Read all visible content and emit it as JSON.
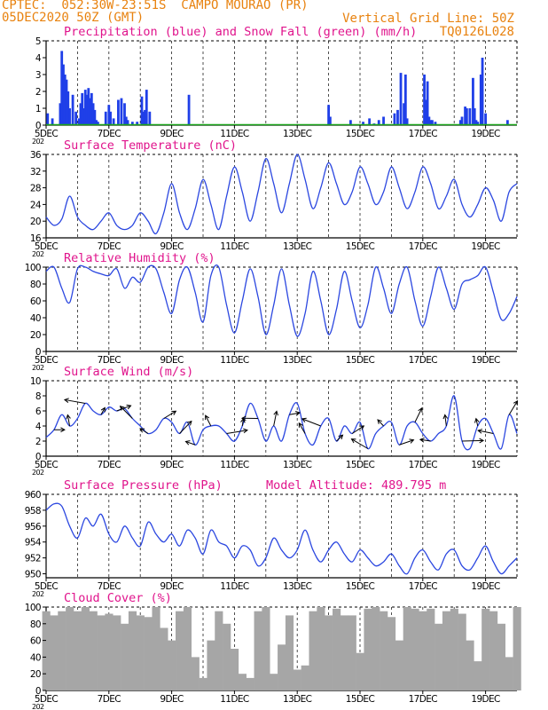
{
  "header": {
    "line1": "CPTEC:  052:30W-23:51S  CAMPO MOURAO (PR)",
    "line2_left": "05DEC2020 50Z (GMT)",
    "line2_right": "Vertical Grid Line: 50Z",
    "line3_right": "TQ0126L028"
  },
  "x_ticks": [
    "5DEC",
    "7DEC",
    "9DEC",
    "11DEC",
    "13DEC",
    "15DEC",
    "17DEC",
    "19DEC"
  ],
  "year_stub": "202",
  "colors": {
    "title": "#e0148c",
    "header": "#e8820f",
    "precip": "#1f3fe8",
    "snow": "#1aa51a",
    "line": "#2b47e0",
    "cloud": "#a6a6a6"
  },
  "chart_data": [
    {
      "type": "bar",
      "title": "Precipitation (blue) and Snow Fall (green) (mm/h)",
      "x_range": [
        5,
        20
      ],
      "ylim": [
        0,
        5
      ],
      "y_ticks": [
        0,
        1,
        2,
        3,
        4,
        5
      ],
      "series": [
        {
          "name": "Precipitation",
          "x": [
            5.05,
            5.2,
            5.45,
            5.5,
            5.55,
            5.6,
            5.65,
            5.7,
            5.75,
            5.85,
            5.95,
            6.05,
            6.1,
            6.15,
            6.2,
            6.25,
            6.3,
            6.35,
            6.4,
            6.45,
            6.5,
            6.55,
            6.6,
            6.65,
            6.9,
            7.0,
            7.05,
            7.15,
            7.3,
            7.4,
            7.5,
            7.55,
            7.6,
            7.75,
            7.9,
            8.05,
            8.1,
            8.15,
            8.2,
            8.3,
            9.55,
            14.0,
            14.05,
            14.7,
            15.1,
            15.3,
            15.45,
            15.6,
            15.75,
            16.1,
            16.2,
            16.3,
            16.4,
            16.45,
            16.5,
            17.05,
            17.1,
            17.15,
            17.2,
            17.25,
            17.3,
            17.4,
            18.2,
            18.25,
            18.35,
            18.4,
            18.5,
            18.6,
            18.65,
            18.7,
            18.75,
            18.85,
            18.9,
            19.0,
            19.7
          ],
          "values": [
            0.7,
            0.4,
            1.3,
            4.4,
            3.6,
            3.0,
            2.7,
            2.0,
            1.0,
            1.8,
            0.8,
            0.4,
            1.3,
            1.9,
            1.0,
            2.1,
            1.8,
            2.2,
            1.6,
            1.9,
            1.3,
            0.9,
            0.3,
            0.2,
            0.8,
            1.2,
            0.8,
            0.4,
            1.5,
            1.6,
            1.3,
            0.5,
            0.3,
            0.2,
            0.2,
            1.7,
            0.8,
            0.9,
            2.1,
            0.8,
            1.8,
            1.2,
            0.5,
            0.3,
            0.2,
            0.4,
            0.1,
            0.3,
            0.5,
            0.7,
            0.9,
            3.1,
            1.3,
            3.0,
            0.4,
            3.0,
            1.5,
            2.6,
            0.5,
            0.3,
            0.3,
            0.2,
            0.3,
            0.5,
            1.1,
            1.0,
            1.0,
            2.8,
            1.0,
            0.3,
            0.2,
            3.0,
            4.0,
            0.7,
            0.3
          ]
        },
        {
          "name": "Snow Fall",
          "x": [
            5,
            20
          ],
          "values": [
            0,
            0
          ]
        }
      ]
    },
    {
      "type": "line",
      "title": "Surface Temperature (nC)",
      "x_range": [
        5,
        20
      ],
      "ylim": [
        16,
        36
      ],
      "y_ticks": [
        16,
        20,
        24,
        28,
        32,
        36
      ],
      "x": [
        5.0,
        5.25,
        5.5,
        5.75,
        6.0,
        6.25,
        6.5,
        6.75,
        7.0,
        7.25,
        7.5,
        7.75,
        8.0,
        8.25,
        8.5,
        8.75,
        9.0,
        9.25,
        9.5,
        9.75,
        10.0,
        10.25,
        10.5,
        10.75,
        11.0,
        11.25,
        11.5,
        11.75,
        12.0,
        12.25,
        12.5,
        12.75,
        13.0,
        13.25,
        13.5,
        13.75,
        14.0,
        14.25,
        14.5,
        14.75,
        15.0,
        15.25,
        15.5,
        15.75,
        16.0,
        16.25,
        16.5,
        16.75,
        17.0,
        17.25,
        17.5,
        17.75,
        18.0,
        18.25,
        18.5,
        18.75,
        19.0,
        19.25,
        19.5,
        19.75,
        20.0
      ],
      "series": [
        {
          "values": [
            21,
            19,
            20.5,
            26,
            21,
            19,
            18,
            20,
            22,
            19,
            18,
            19,
            22,
            20,
            17,
            22,
            29,
            22,
            18,
            23,
            30,
            24,
            18,
            26,
            33,
            27,
            20,
            27,
            35,
            29,
            22,
            29,
            36,
            30,
            23,
            28,
            34,
            29,
            24,
            27,
            33,
            29,
            24,
            27,
            33,
            28,
            23,
            27,
            33,
            29,
            23,
            26,
            30,
            24,
            21,
            24,
            28,
            25,
            20,
            27,
            29
          ]
        }
      ]
    },
    {
      "type": "line",
      "title": "Relative Humidity (%)",
      "x_range": [
        5,
        20
      ],
      "ylim": [
        0,
        100
      ],
      "y_ticks": [
        0,
        20,
        40,
        60,
        80,
        100
      ],
      "x": [
        5.0,
        5.25,
        5.5,
        5.75,
        6.0,
        6.25,
        6.5,
        6.75,
        7.0,
        7.25,
        7.5,
        7.75,
        8.0,
        8.25,
        8.5,
        8.75,
        9.0,
        9.25,
        9.5,
        9.75,
        10.0,
        10.25,
        10.5,
        10.75,
        11.0,
        11.25,
        11.5,
        11.75,
        12.0,
        12.25,
        12.5,
        12.75,
        13.0,
        13.25,
        13.5,
        13.75,
        14.0,
        14.25,
        14.5,
        14.75,
        15.0,
        15.25,
        15.5,
        15.75,
        16.0,
        16.25,
        16.5,
        16.75,
        17.0,
        17.25,
        17.5,
        17.75,
        18.0,
        18.25,
        18.5,
        18.75,
        19.0,
        19.25,
        19.5,
        19.75,
        20.0
      ],
      "series": [
        {
          "values": [
            95,
            100,
            75,
            58,
            98,
            100,
            95,
            92,
            90,
            98,
            75,
            88,
            82,
            100,
            98,
            70,
            45,
            85,
            100,
            70,
            35,
            90,
            100,
            55,
            22,
            60,
            98,
            65,
            20,
            55,
            98,
            55,
            18,
            45,
            95,
            60,
            20,
            50,
            95,
            60,
            28,
            55,
            100,
            75,
            45,
            80,
            100,
            60,
            30,
            65,
            100,
            75,
            50,
            80,
            85,
            90,
            100,
            70,
            38,
            45,
            65
          ]
        }
      ]
    },
    {
      "type": "line",
      "title": "Surface Wind (m/s)",
      "x_range": [
        5,
        20
      ],
      "ylim": [
        0,
        10
      ],
      "y_ticks": [
        0,
        2,
        4,
        6,
        8,
        10
      ],
      "x": [
        5.0,
        5.25,
        5.5,
        5.75,
        6.0,
        6.25,
        6.5,
        6.75,
        7.0,
        7.25,
        7.5,
        7.75,
        8.0,
        8.25,
        8.5,
        8.75,
        9.0,
        9.25,
        9.5,
        9.75,
        10.0,
        10.25,
        10.5,
        10.75,
        11.0,
        11.25,
        11.5,
        11.75,
        12.0,
        12.25,
        12.5,
        12.75,
        13.0,
        13.25,
        13.5,
        13.75,
        14.0,
        14.25,
        14.5,
        14.75,
        15.0,
        15.25,
        15.5,
        15.75,
        16.0,
        16.25,
        16.5,
        16.75,
        17.0,
        17.25,
        17.5,
        17.75,
        18.0,
        18.25,
        18.5,
        18.75,
        19.0,
        19.25,
        19.5,
        19.75,
        20.0
      ],
      "series": [
        {
          "values": [
            2.5,
            3.5,
            5.5,
            4.0,
            5.0,
            7.0,
            6.0,
            5.5,
            6.5,
            6.0,
            6.3,
            5.0,
            4.0,
            3.0,
            3.5,
            5.0,
            4.5,
            3.0,
            4.5,
            1.5,
            3.5,
            4.0,
            4.0,
            3.0,
            2.0,
            4.0,
            7.0,
            5.0,
            2.0,
            4.0,
            2.0,
            5.5,
            7.0,
            3.0,
            1.5,
            4.0,
            5.0,
            2.0,
            4.0,
            3.0,
            4.5,
            1.0,
            3.0,
            4.0,
            4.5,
            1.5,
            4.0,
            4.5,
            3.0,
            2.0,
            3.0,
            4.0,
            8.0,
            2.0,
            1.0,
            4.0,
            5.0,
            3.0,
            1.0,
            5.5,
            3.0
          ]
        }
      ],
      "wind_arrow_count": 30
    },
    {
      "type": "line",
      "title": "Surface Pressure (hPa)",
      "annotation": "Model Altitude: 489.795 m",
      "x_range": [
        5,
        20
      ],
      "ylim": [
        949.5,
        960
      ],
      "y_ticks": [
        950,
        952,
        954,
        956,
        958,
        960
      ],
      "x": [
        5.0,
        5.25,
        5.5,
        5.75,
        6.0,
        6.25,
        6.5,
        6.75,
        7.0,
        7.25,
        7.5,
        7.75,
        8.0,
        8.25,
        8.5,
        8.75,
        9.0,
        9.25,
        9.5,
        9.75,
        10.0,
        10.25,
        10.5,
        10.75,
        11.0,
        11.25,
        11.5,
        11.75,
        12.0,
        12.25,
        12.5,
        12.75,
        13.0,
        13.25,
        13.5,
        13.75,
        14.0,
        14.25,
        14.5,
        14.75,
        15.0,
        15.25,
        15.5,
        15.75,
        16.0,
        16.25,
        16.5,
        16.75,
        17.0,
        17.25,
        17.5,
        17.75,
        18.0,
        18.25,
        18.5,
        18.75,
        19.0,
        19.25,
        19.5,
        19.75,
        20.0
      ],
      "series": [
        {
          "values": [
            958,
            958.8,
            958.5,
            956,
            954.5,
            957,
            956,
            957.5,
            955,
            954,
            956,
            954.5,
            953.5,
            956.5,
            955,
            954,
            955,
            953.5,
            955.5,
            954.5,
            952.5,
            955.5,
            954,
            953.5,
            952,
            953.5,
            953,
            951,
            952,
            954.5,
            953,
            952,
            953,
            955.5,
            953,
            951.5,
            953,
            954,
            952.5,
            951.5,
            953,
            952,
            951,
            951.5,
            952.5,
            951,
            950,
            952,
            953,
            951.5,
            950.5,
            952.5,
            953,
            951,
            950.5,
            952,
            953.5,
            951.5,
            950,
            951,
            952
          ]
        }
      ]
    },
    {
      "type": "bar",
      "title": "Cloud Cover (%)",
      "x_range": [
        5,
        20
      ],
      "ylim": [
        0,
        100
      ],
      "y_ticks": [
        0,
        20,
        40,
        60,
        80,
        100
      ],
      "x": [
        5.0,
        5.25,
        5.5,
        5.75,
        6.0,
        6.25,
        6.5,
        6.75,
        7.0,
        7.25,
        7.5,
        7.75,
        8.0,
        8.25,
        8.5,
        8.75,
        9.0,
        9.25,
        9.5,
        9.75,
        10.0,
        10.25,
        10.5,
        10.75,
        11.0,
        11.25,
        11.5,
        11.75,
        12.0,
        12.25,
        12.5,
        12.75,
        13.0,
        13.25,
        13.5,
        13.75,
        14.0,
        14.25,
        14.5,
        14.75,
        15.0,
        15.25,
        15.5,
        15.75,
        16.0,
        16.25,
        16.5,
        16.75,
        17.0,
        17.25,
        17.5,
        17.75,
        18.0,
        18.25,
        18.5,
        18.75,
        19.0,
        19.25,
        19.5,
        19.75,
        20.0
      ],
      "values": [
        95,
        90,
        95,
        100,
        95,
        100,
        95,
        90,
        92,
        90,
        80,
        95,
        90,
        88,
        100,
        75,
        60,
        95,
        100,
        40,
        15,
        60,
        95,
        80,
        50,
        20,
        15,
        95,
        100,
        20,
        55,
        90,
        25,
        30,
        95,
        100,
        90,
        98,
        90,
        90,
        45,
        98,
        100,
        95,
        88,
        60,
        100,
        98,
        95,
        98,
        80,
        95,
        98,
        92,
        60,
        35,
        98,
        95,
        80,
        40,
        100
      ]
    }
  ]
}
